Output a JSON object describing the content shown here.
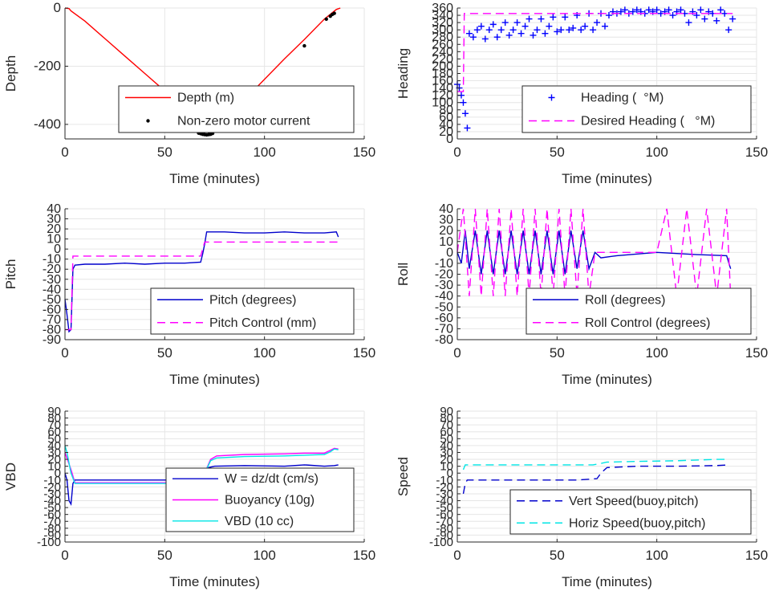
{
  "chart_data": [
    {
      "id": "depth",
      "type": "line",
      "xlabel": "Time (minutes)",
      "ylabel": "Depth",
      "xlim": [
        0,
        150
      ],
      "ylim": [
        -450,
        0
      ],
      "xticks": [
        0,
        50,
        100,
        150
      ],
      "yticks": [
        0,
        -200,
        -400
      ],
      "grid": true,
      "legend_position": "bottom-center",
      "series": [
        {
          "name": "Depth (m)",
          "color": "#ff0000",
          "style": "solid",
          "x": [
            0,
            2,
            3,
            10,
            20,
            30,
            40,
            50,
            60,
            66,
            70,
            73,
            75,
            80,
            90,
            100,
            110,
            120,
            130,
            136,
            138
          ],
          "y": [
            0,
            -2,
            -10,
            -45,
            -105,
            -165,
            -225,
            -285,
            -345,
            -380,
            -432,
            -435,
            -425,
            -385,
            -315,
            -245,
            -175,
            -108,
            -38,
            -5,
            0
          ]
        },
        {
          "name": "Non-zero motor current",
          "color": "#000000",
          "style": "marker",
          "x": [
            67,
            68,
            69,
            70,
            71,
            72,
            73,
            74,
            120,
            131,
            133,
            134,
            135
          ],
          "y": [
            -430,
            -432,
            -434,
            -435,
            -436,
            -435,
            -434,
            -431,
            -130,
            -38,
            -28,
            -22,
            -18
          ]
        }
      ]
    },
    {
      "id": "heading",
      "type": "scatter",
      "xlabel": "Time (minutes)",
      "ylabel": "Heading",
      "xlim": [
        0,
        150
      ],
      "ylim": [
        0,
        360
      ],
      "xticks": [
        0,
        50,
        100,
        150
      ],
      "yticks": [
        0,
        20,
        40,
        60,
        80,
        100,
        120,
        140,
        160,
        180,
        200,
        220,
        240,
        260,
        280,
        300,
        320,
        340,
        360
      ],
      "grid": true,
      "legend_position": "bottom-right",
      "series": [
        {
          "name": "Heading (  °M)",
          "color": "#0000ff",
          "style": "marker",
          "x": [
            0,
            1,
            2,
            3,
            4,
            5,
            6,
            8,
            10,
            12,
            14,
            16,
            18,
            20,
            22,
            24,
            26,
            28,
            30,
            32,
            34,
            36,
            38,
            40,
            42,
            44,
            46,
            48,
            50,
            52,
            54,
            56,
            58,
            60,
            62,
            64,
            66,
            68,
            70,
            72,
            74,
            76,
            78,
            80,
            82,
            84,
            86,
            88,
            90,
            92,
            94,
            96,
            98,
            100,
            102,
            104,
            106,
            108,
            110,
            112,
            114,
            116,
            118,
            120,
            122,
            124,
            126,
            128,
            130,
            132,
            134,
            136,
            138
          ],
          "y": [
            150,
            140,
            120,
            100,
            70,
            30,
            290,
            280,
            300,
            310,
            275,
            300,
            315,
            280,
            300,
            320,
            285,
            300,
            320,
            290,
            310,
            330,
            285,
            300,
            330,
            290,
            310,
            335,
            295,
            300,
            335,
            300,
            305,
            340,
            300,
            310,
            345,
            300,
            320,
            345,
            310,
            340,
            350,
            345,
            350,
            355,
            345,
            350,
            355,
            350,
            345,
            355,
            350,
            355,
            345,
            350,
            355,
            340,
            350,
            355,
            345,
            320,
            350,
            340,
            355,
            330,
            350,
            345,
            325,
            355,
            345,
            300,
            330
          ]
        },
        {
          "name": "Desired Heading (   °M)",
          "color": "#ff00ff",
          "style": "dashed",
          "x": [
            0,
            3,
            3.5,
            138
          ],
          "y": [
            130,
            130,
            345,
            345
          ]
        }
      ]
    },
    {
      "id": "pitch",
      "type": "line",
      "xlabel": "Time (minutes)",
      "ylabel": "Pitch",
      "xlim": [
        0,
        150
      ],
      "ylim": [
        -90,
        40
      ],
      "xticks": [
        0,
        50,
        100,
        150
      ],
      "yticks": [
        40,
        30,
        20,
        10,
        0,
        -10,
        -20,
        -30,
        -40,
        -50,
        -60,
        -70,
        -80,
        -90
      ],
      "grid": true,
      "legend_position": "bottom-right",
      "series": [
        {
          "name": "Pitch (degrees)",
          "color": "#0000cc",
          "style": "solid",
          "x": [
            0,
            1,
            2,
            3,
            4,
            5,
            10,
            20,
            30,
            40,
            50,
            60,
            68,
            69,
            70,
            71,
            80,
            90,
            100,
            110,
            120,
            130,
            136,
            137
          ],
          "y": [
            -50,
            -65,
            -82,
            -80,
            -20,
            -16,
            -15,
            -15,
            -14,
            -15,
            -14,
            -14,
            -13,
            -5,
            5,
            17,
            17,
            16,
            16,
            17,
            16,
            16,
            17,
            12
          ]
        },
        {
          "name": "Pitch Control (mm)",
          "color": "#ff00ff",
          "style": "dashed",
          "x": [
            0,
            2,
            3,
            4,
            5,
            68,
            69,
            70,
            137
          ],
          "y": [
            -80,
            -80,
            -80,
            -7,
            -7,
            -7,
            0,
            7,
            7
          ]
        }
      ]
    },
    {
      "id": "roll",
      "type": "line",
      "xlabel": "Time (minutes)",
      "ylabel": "Roll",
      "xlim": [
        0,
        150
      ],
      "ylim": [
        -80,
        40
      ],
      "xticks": [
        0,
        50,
        100,
        150
      ],
      "yticks": [
        40,
        30,
        20,
        10,
        0,
        -10,
        -20,
        -30,
        -40,
        -50,
        -60,
        -70,
        -80
      ],
      "grid": true,
      "legend_position": "bottom-right",
      "series": [
        {
          "name": "Roll (degrees)",
          "color": "#0000cc",
          "style": "solid",
          "x": [
            0,
            2,
            4,
            6,
            9,
            12,
            15,
            18,
            21,
            24,
            27,
            30,
            33,
            36,
            39,
            42,
            45,
            48,
            51,
            54,
            57,
            60,
            63,
            66,
            69,
            72,
            80,
            100,
            120,
            135,
            137
          ],
          "y": [
            0,
            -10,
            20,
            -15,
            20,
            -20,
            20,
            -20,
            20,
            -20,
            20,
            -20,
            20,
            -20,
            20,
            -20,
            20,
            -20,
            20,
            -20,
            20,
            -15,
            20,
            -15,
            0,
            -5,
            -3,
            0,
            -2,
            -3,
            -15
          ]
        },
        {
          "name": "Roll Control (degrees)",
          "color": "#ff00ff",
          "style": "dashed",
          "x": [
            0,
            3,
            6,
            9,
            12,
            15,
            18,
            21,
            24,
            27,
            30,
            33,
            36,
            39,
            42,
            45,
            48,
            51,
            54,
            57,
            60,
            63,
            66,
            69,
            72,
            80,
            100,
            105,
            110,
            115,
            120,
            125,
            130,
            135,
            137
          ],
          "y": [
            0,
            40,
            -40,
            40,
            -40,
            40,
            -40,
            40,
            -40,
            40,
            -40,
            40,
            -40,
            40,
            -40,
            40,
            -40,
            40,
            -40,
            40,
            -40,
            40,
            -40,
            0,
            0,
            0,
            0,
            40,
            -40,
            40,
            -40,
            40,
            -40,
            40,
            -40
          ]
        }
      ]
    },
    {
      "id": "vbd",
      "type": "line",
      "xlabel": "Time (minutes)",
      "ylabel": "VBD",
      "xlim": [
        0,
        150
      ],
      "ylim": [
        -100,
        90
      ],
      "xticks": [
        0,
        50,
        100,
        150
      ],
      "yticks": [
        90,
        80,
        70,
        60,
        50,
        40,
        30,
        20,
        10,
        0,
        -10,
        -20,
        -30,
        -40,
        -50,
        -60,
        -70,
        -80,
        -90,
        -100
      ],
      "ytick_labels": [
        "90",
        "80",
        "70",
        "60",
        "50",
        "40",
        "30",
        "20",
        "10",
        "0",
        "-10",
        "-20",
        "-30",
        "-40",
        "-50",
        "-60",
        "-70",
        "-80",
        "-90",
        "-100"
      ],
      "grid": true,
      "legend_position": "bottom-right",
      "series": [
        {
          "name": "W = dz/dt (cm/s)",
          "color": "#0000cc",
          "style": "solid",
          "x": [
            0,
            1,
            2,
            3,
            4,
            5,
            10,
            20,
            40,
            60,
            68,
            70,
            72,
            75,
            90,
            110,
            120,
            130,
            135,
            137
          ],
          "y": [
            0,
            -10,
            -40,
            -45,
            -15,
            -10,
            -10,
            -10,
            -10,
            -10,
            -10,
            0,
            8,
            10,
            11,
            10,
            12,
            10,
            11,
            12
          ]
        },
        {
          "name": "Buoyancy (10g)",
          "color": "#ff00ff",
          "style": "solid",
          "x": [
            0,
            3,
            5,
            10,
            40,
            68,
            70,
            73,
            76,
            90,
            110,
            120,
            130,
            133,
            135,
            137
          ],
          "y": [
            30,
            5,
            -14,
            -14,
            -14,
            -14,
            0,
            20,
            25,
            27,
            28,
            29,
            29,
            33,
            36,
            35
          ]
        },
        {
          "name": "VBD (10 cc)",
          "color": "#00e5e5",
          "style": "solid",
          "x": [
            0,
            1,
            3,
            5,
            10,
            40,
            68,
            70,
            73,
            76,
            90,
            110,
            120,
            130,
            133,
            135,
            137
          ],
          "y": [
            40,
            30,
            0,
            -15,
            -15,
            -15,
            -15,
            0,
            18,
            22,
            24,
            25,
            26,
            27,
            31,
            35,
            34
          ]
        }
      ]
    },
    {
      "id": "speed",
      "type": "line",
      "xlabel": "Time (minutes)",
      "ylabel": "Speed",
      "xlim": [
        0,
        150
      ],
      "ylim": [
        -100,
        90
      ],
      "xticks": [
        0,
        50,
        100,
        150
      ],
      "yticks": [
        90,
        80,
        70,
        60,
        50,
        40,
        30,
        20,
        10,
        0,
        -10,
        -20,
        -30,
        -40,
        -50,
        -60,
        -70,
        -80,
        -90,
        -100
      ],
      "ytick_labels": [
        "90",
        "80",
        "70",
        "60",
        "50",
        "40",
        "30",
        "20",
        "10",
        "0",
        "-10",
        "-20",
        "-30",
        "-40",
        "-50",
        "-60",
        "-70",
        "-80",
        "-90",
        "-100"
      ],
      "grid": true,
      "legend_position": "bottom-right",
      "series": [
        {
          "name": "Vert Speed(buoy,pitch)",
          "color": "#0000cc",
          "style": "dashed",
          "x": [
            3,
            4,
            5,
            10,
            30,
            60,
            70,
            72,
            75,
            90,
            110,
            130,
            136
          ],
          "y": [
            -30,
            -15,
            -10,
            -10,
            -10,
            -10,
            -8,
            0,
            8,
            10,
            10,
            11,
            12
          ]
        },
        {
          "name": "Horiz Speed(buoy,pitch)",
          "color": "#00e5e5",
          "style": "dashed",
          "x": [
            3,
            4,
            5,
            10,
            30,
            60,
            68,
            70,
            75,
            90,
            110,
            120,
            130,
            136
          ],
          "y": [
            5,
            12,
            12,
            12,
            12,
            12,
            12,
            13,
            16,
            17,
            18,
            19,
            20,
            20
          ]
        }
      ]
    }
  ]
}
